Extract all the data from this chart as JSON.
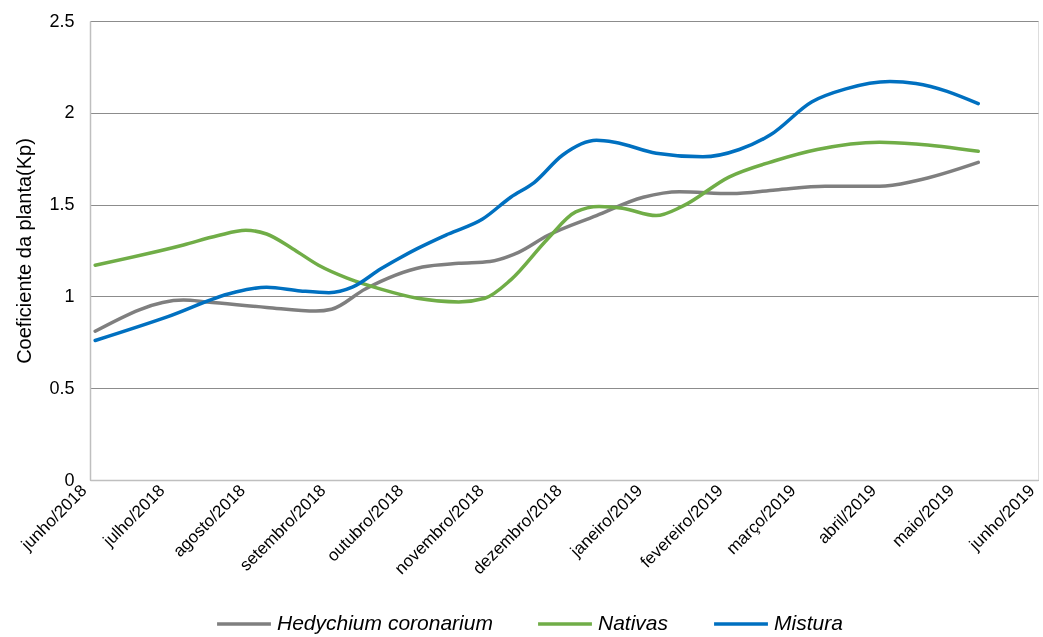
{
  "chart_data": {
    "type": "line",
    "ylabel": "Coeficiente da planta(Kp)",
    "xlim": [
      "2018-06-01",
      "2019-06-01"
    ],
    "xticks": [
      {
        "value": "2018-06-01",
        "label": "junho/2018"
      },
      {
        "value": "2018-07-01",
        "label": "julho/2018"
      },
      {
        "value": "2018-08-01",
        "label": "agosto/2018"
      },
      {
        "value": "2018-09-01",
        "label": "setembro/2018"
      },
      {
        "value": "2018-10-01",
        "label": "outubro/2018"
      },
      {
        "value": "2018-11-01",
        "label": "novembro/2018"
      },
      {
        "value": "2018-12-01",
        "label": "dezembro/2018"
      },
      {
        "value": "2019-01-01",
        "label": "janeiro/2019"
      },
      {
        "value": "2019-02-01",
        "label": "fevereiro/2019"
      },
      {
        "value": "2019-03-01",
        "label": "março/2019"
      },
      {
        "value": "2019-04-01",
        "label": "abril/2019"
      },
      {
        "value": "2019-05-01",
        "label": "maio/2019"
      },
      {
        "value": "2019-06-01",
        "label": "junho/2019"
      }
    ],
    "ylim": [
      0,
      2.5
    ],
    "yticks": [
      0,
      0.5,
      1,
      1.5,
      2,
      2.5
    ],
    "grid": "y",
    "legend": "bottom",
    "series": [
      {
        "name": "Hedychium coronarium",
        "color": "#7f7f7f",
        "x": [
          "2018-06-03",
          "2018-07-07",
          "2018-07-16",
          "2018-08-08",
          "2018-08-27",
          "2018-09-02",
          "2018-09-15",
          "2018-10-07",
          "2018-10-21",
          "2018-11-02",
          "2018-11-13",
          "2018-11-24",
          "2018-12-13",
          "2018-12-31",
          "2019-01-14",
          "2019-02-03",
          "2019-02-20",
          "2019-03-11",
          "2019-04-01",
          "2019-04-15",
          "2019-05-09"
        ],
        "values": [
          0.81,
          0.98,
          0.97,
          0.94,
          0.92,
          0.93,
          1.04,
          1.16,
          1.18,
          1.19,
          1.24,
          1.33,
          1.44,
          1.54,
          1.57,
          1.56,
          1.58,
          1.6,
          1.6,
          1.63,
          1.73
        ]
      },
      {
        "name": "Nativas",
        "color": "#70ad47",
        "x": [
          "2018-06-03",
          "2018-07-07",
          "2018-07-20",
          "2018-07-31",
          "2018-08-08",
          "2018-08-18",
          "2018-08-28",
          "2018-09-08",
          "2018-09-21",
          "2018-10-05",
          "2018-10-21",
          "2018-10-31",
          "2018-11-10",
          "2018-11-24",
          "2018-12-05",
          "2018-12-14",
          "2018-12-23",
          "2019-01-05",
          "2019-01-15",
          "2019-02-02",
          "2019-02-20",
          "2019-03-08",
          "2019-04-01",
          "2019-04-15",
          "2019-05-09"
        ],
        "values": [
          1.17,
          1.28,
          1.33,
          1.36,
          1.34,
          1.26,
          1.17,
          1.1,
          1.04,
          0.99,
          0.97,
          0.99,
          1.09,
          1.31,
          1.46,
          1.49,
          1.48,
          1.44,
          1.49,
          1.65,
          1.74,
          1.8,
          1.84,
          1.83,
          1.79
        ]
      },
      {
        "name": "Mistura",
        "color": "#0070c0",
        "x": [
          "2018-06-03",
          "2018-07-01",
          "2018-07-26",
          "2018-08-08",
          "2018-08-21",
          "2018-09-01",
          "2018-09-10",
          "2018-09-21",
          "2018-10-05",
          "2018-10-17",
          "2018-10-30",
          "2018-11-10",
          "2018-11-19",
          "2018-11-30",
          "2018-12-13",
          "2018-12-20",
          "2019-01-05",
          "2019-01-23",
          "2019-02-06",
          "2019-02-18",
          "2019-03-06",
          "2019-03-19",
          "2019-04-05",
          "2019-04-15",
          "2019-05-09"
        ],
        "values": [
          0.76,
          0.89,
          1.02,
          1.05,
          1.03,
          1.02,
          1.05,
          1.15,
          1.26,
          1.34,
          1.42,
          1.54,
          1.62,
          1.77,
          1.85,
          1.84,
          1.78,
          1.76,
          1.8,
          1.88,
          2.06,
          2.13,
          2.17,
          2.16,
          2.05
        ]
      }
    ]
  }
}
